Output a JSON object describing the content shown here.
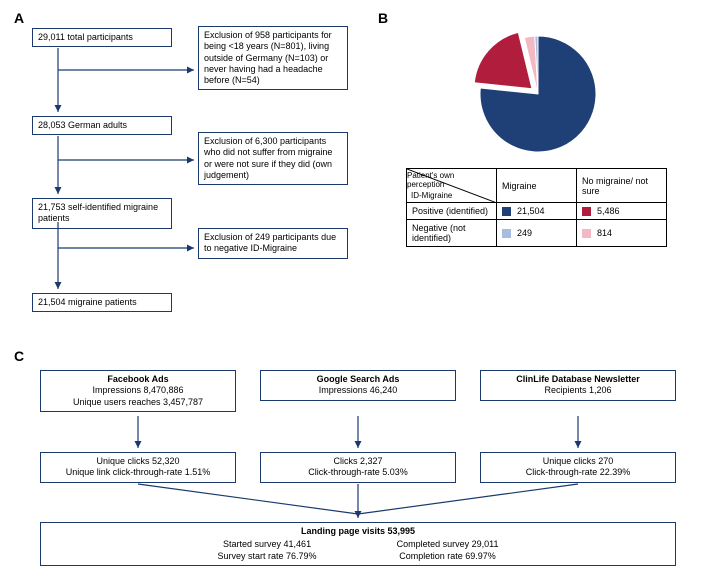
{
  "colors": {
    "border": "#1a3a6e",
    "arrow": "#1a3a6e",
    "migraine_pos": "#1f3f77",
    "migraine_neg": "#a7bde0",
    "nomig_pos": "#b11e3d",
    "nomig_neg": "#f2b9c4"
  },
  "labels": {
    "A": "A",
    "B": "B",
    "C": "C"
  },
  "panelA": {
    "b1": "29,011 total participants",
    "b2": "28,053 German adults",
    "b3": "21,753 self-identified migraine patients",
    "b4": "21,504 migraine patients",
    "ex1": "Exclusion of 958 participants for being <18 years (N=801), living outside of Germany (N=103) or never having had a headache before (N=54)",
    "ex2": "Exclusion of 6,300 participants who did not suffer from migraine or were not sure if they did (own judgement)",
    "ex3": "Exclusion of 249 participants due to negative ID-Migraine"
  },
  "panelB": {
    "pie": {
      "slices": [
        {
          "label": "Migraine positive",
          "value": 21504,
          "color": "#1f3f77"
        },
        {
          "label": "No migraine positive",
          "value": 5486,
          "color": "#b11e3d"
        },
        {
          "label": "No migraine negative",
          "value": 814,
          "color": "#f2b9c4"
        },
        {
          "label": "Migraine negative",
          "value": 249,
          "color": "#a7bde0"
        }
      ],
      "exploded_index": 1
    },
    "table": {
      "diag_top": "Patient's own perception",
      "diag_bottom": "ID-Migraine",
      "col1": "Migraine",
      "col2": "No migraine/ not sure",
      "row1_label": "Positive (identified)",
      "row2_label": "Negative (not identified)",
      "r1c1": "21,504",
      "r1c2": "5,486",
      "r2c1": "249",
      "r2c2": "814"
    }
  },
  "panelC": {
    "fb_title": "Facebook Ads",
    "fb_l1": "Impressions 8,470,886",
    "fb_l2": "Unique users reaches 3,457,787",
    "gg_title": "Google Search Ads",
    "gg_l1": "Impressions 46,240",
    "cl_title": "ClinLife Database Newsletter",
    "cl_l1": "Recipients 1,206",
    "fb2_l1": "Unique clicks 52,320",
    "fb2_l2": "Unique link click-through-rate 1.51%",
    "gg2_l1": "Clicks 2,327",
    "gg2_l2": "Click-through-rate 5.03%",
    "cl2_l1": "Unique clicks 270",
    "cl2_l2": "Click-through-rate 22.39%",
    "land_title": "Landing page visits 53,995",
    "land_l1": "Started survey 41,461",
    "land_l2": "Survey start rate 76.79%",
    "land_r1": "Completed survey 29,011",
    "land_r2": "Completion rate 69.97%"
  }
}
